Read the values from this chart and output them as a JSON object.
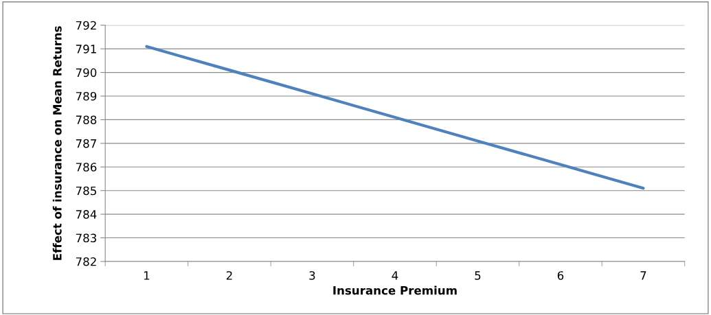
{
  "chart_data": {
    "type": "line",
    "xlabel": "Insurance Premium",
    "ylabel": "Effect of insurance on Mean Returns",
    "categories": [
      "1",
      "2",
      "3",
      "4",
      "5",
      "6",
      "7"
    ],
    "series": [
      {
        "color": "#4f81bd",
        "values": [
          791.1,
          790.1,
          789.1,
          788.1,
          787.1,
          786.1,
          785.1
        ]
      }
    ],
    "ylim": [
      782,
      792
    ],
    "yticks": [
      782,
      783,
      784,
      785,
      786,
      787,
      788,
      789,
      790,
      791,
      792
    ],
    "grid": "y",
    "marker": "none",
    "line_style": "solid"
  }
}
